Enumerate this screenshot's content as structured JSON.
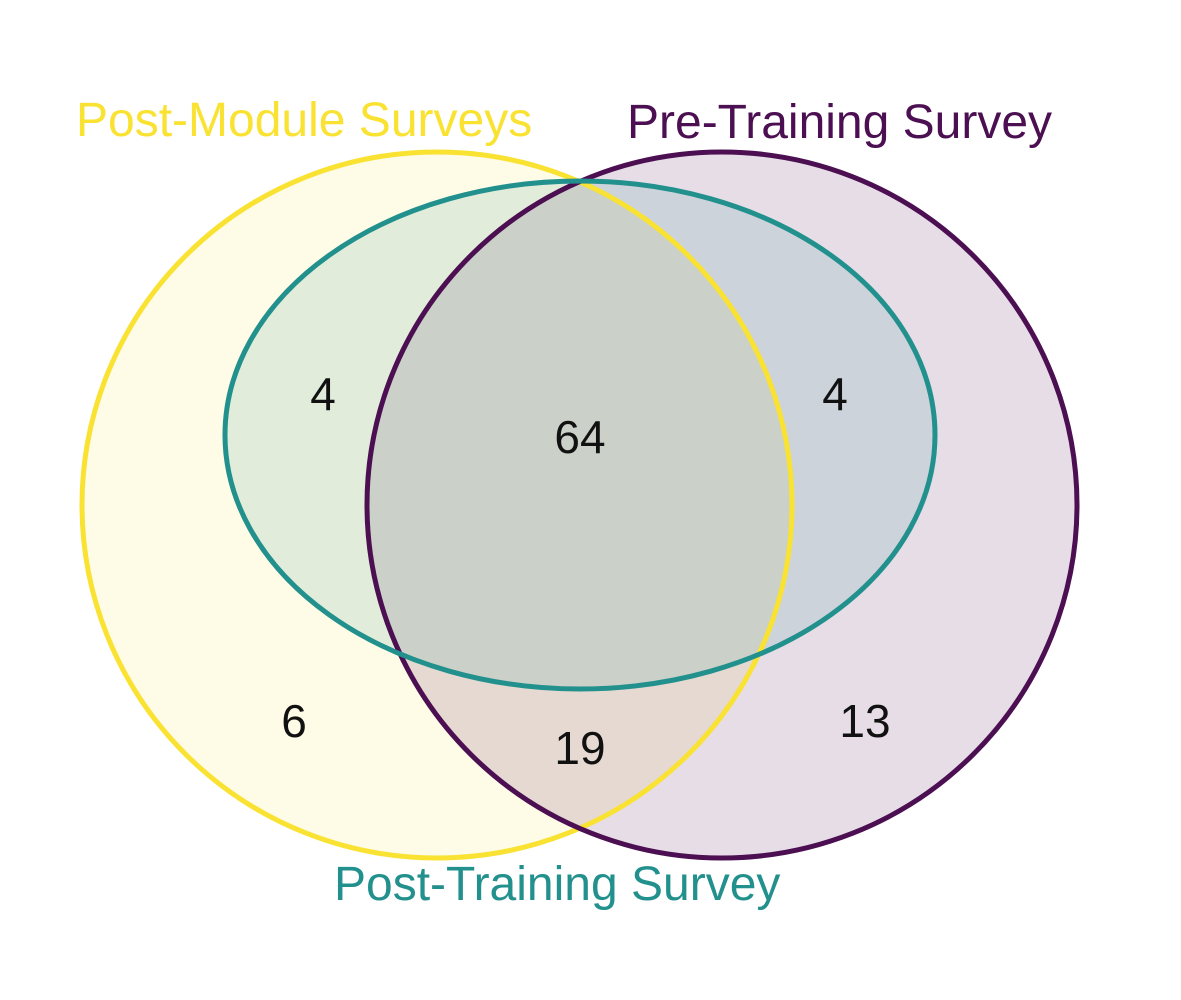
{
  "venn": {
    "sets": [
      {
        "key": "post_module",
        "label": "Post-Module Surveys",
        "color": "#f9e232"
      },
      {
        "key": "pre_training",
        "label": "Pre-Training Survey",
        "color": "#4b0f52"
      },
      {
        "key": "post_training",
        "label": "Post-Training Survey",
        "color": "#22908c"
      }
    ],
    "regions": {
      "post_module_only": "6",
      "pre_training_only": "13",
      "post_training_only": "",
      "post_module_and_post_training": "4",
      "pre_training_and_post_training": "4",
      "post_module_and_pre_training": "19",
      "all_three": "64"
    }
  }
}
